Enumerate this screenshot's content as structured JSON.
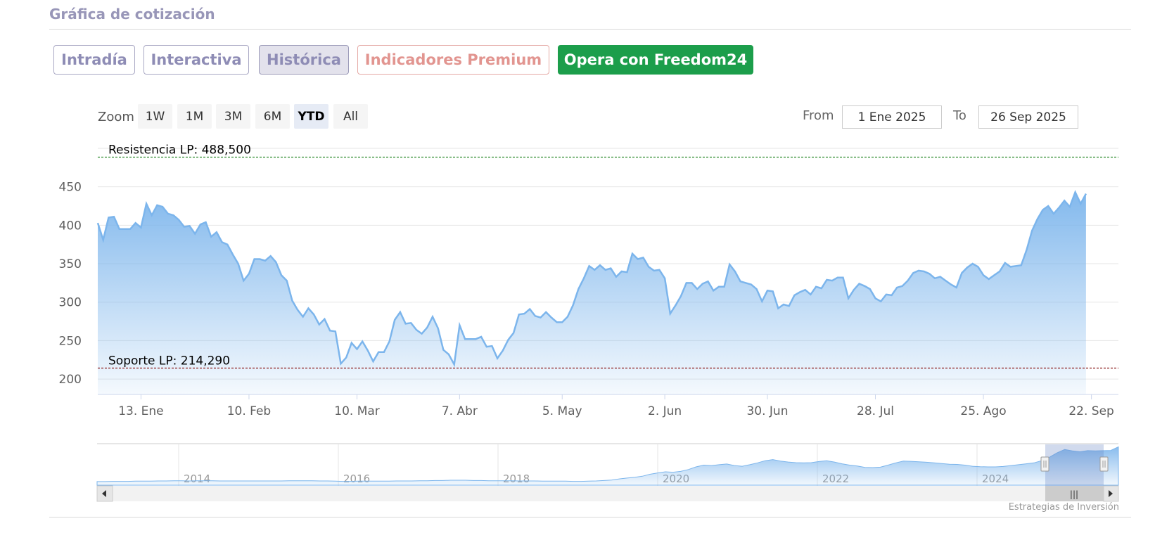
{
  "header": {
    "title": "Gráfica de cotización"
  },
  "tabs": [
    {
      "label": "Intradía",
      "state": "default"
    },
    {
      "label": "Interactiva",
      "state": "default"
    },
    {
      "label": "Histórica",
      "state": "active"
    },
    {
      "label": "Indicadores Premium",
      "state": "premium"
    },
    {
      "label": "Opera con Freedom24",
      "state": "cta"
    }
  ],
  "zoom": {
    "label": "Zoom",
    "buttons": [
      "1W",
      "1M",
      "3M",
      "6M",
      "YTD",
      "All"
    ],
    "selected": "YTD"
  },
  "range": {
    "from_label": "From",
    "from_value": "1 Ene 2025",
    "to_label": "To",
    "to_value": "26 Sep 2025"
  },
  "colors": {
    "line": "#7cb5ec",
    "resistance": "#2e8b2e",
    "support": "#8b1a1a",
    "cta": "#1c9e4b",
    "title": "#9896b8"
  },
  "chart_data": {
    "type": "area",
    "xlim_index": [
      0,
      189
    ],
    "ylim": [
      180,
      510
    ],
    "yticks": [
      200,
      250,
      300,
      350,
      400,
      450
    ],
    "xticks": [
      {
        "label": "13. Ene",
        "index": 8
      },
      {
        "label": "10. Feb",
        "index": 28
      },
      {
        "label": "10. Mar",
        "index": 48
      },
      {
        "label": "7. Abr",
        "index": 67
      },
      {
        "label": "5. May",
        "index": 86
      },
      {
        "label": "2. Jun",
        "index": 105
      },
      {
        "label": "30. Jun",
        "index": 124
      },
      {
        "label": "28. Jul",
        "index": 144
      },
      {
        "label": "25. Ago",
        "index": 164
      },
      {
        "label": "22. Sep",
        "index": 184
      }
    ],
    "plot_bands": [
      {
        "label": "Resistencia LP: 488,500",
        "value": 488.5,
        "color": "#2e8b2e"
      },
      {
        "label": "Soporte LP: 214,290",
        "value": 214.29,
        "color": "#8b1a1a"
      }
    ],
    "series": [
      {
        "values": [
          403,
          381,
          410,
          411,
          395,
          395,
          395,
          403,
          397,
          428,
          413,
          426,
          424,
          415,
          413,
          407,
          398,
          399,
          389,
          401,
          404,
          385,
          391,
          378,
          375,
          362,
          350,
          328,
          337,
          356,
          356,
          354,
          360,
          352,
          335,
          328,
          302,
          290,
          281,
          292,
          284,
          271,
          278,
          263,
          262,
          220,
          228,
          247,
          239,
          249,
          237,
          223,
          235,
          235,
          249,
          277,
          287,
          272,
          273,
          264,
          259,
          267,
          281,
          266,
          238,
          232,
          219,
          270,
          252,
          252,
          252,
          255,
          242,
          243,
          227,
          237,
          251,
          260,
          284,
          285,
          291,
          282,
          280,
          287,
          280,
          274,
          274,
          281,
          296,
          317,
          331,
          347,
          342,
          348,
          342,
          344,
          333,
          340,
          339,
          363,
          356,
          358,
          346,
          341,
          342,
          331,
          285,
          296,
          308,
          325,
          325,
          317,
          324,
          327,
          315,
          320,
          320,
          349,
          340,
          327,
          325,
          323,
          317,
          301,
          315,
          314,
          292,
          297,
          295,
          309,
          313,
          316,
          310,
          320,
          318,
          329,
          328,
          332,
          332,
          305,
          316,
          324,
          321,
          317,
          305,
          301,
          310,
          309,
          319,
          321,
          328,
          338,
          341,
          340,
          337,
          331,
          333,
          328,
          323,
          319,
          338,
          345,
          350,
          346,
          335,
          330,
          335,
          340,
          351,
          346,
          347,
          348,
          368,
          393,
          408,
          420,
          425,
          415,
          423,
          432,
          424,
          443,
          428,
          441
        ]
      }
    ],
    "navigator": {
      "year_labels": [
        "2014",
        "2016",
        "2018",
        "2020",
        "2022",
        "2024"
      ],
      "values": [
        16,
        16,
        17,
        17,
        17,
        18,
        18,
        18,
        19,
        19,
        20,
        20,
        19,
        20,
        20,
        20,
        19,
        19,
        19,
        19,
        19,
        19,
        19,
        19,
        19,
        20,
        20,
        20,
        20,
        19,
        19,
        18,
        17,
        17,
        18,
        18,
        18,
        18,
        18,
        19,
        19,
        19,
        20,
        20,
        21,
        21,
        22,
        22,
        22,
        21,
        21,
        20,
        20,
        20,
        20,
        19,
        19,
        19,
        18,
        18,
        18,
        18,
        17,
        17,
        18,
        19,
        21,
        23,
        28,
        32,
        35,
        40,
        49,
        55,
        60,
        58,
        62,
        70,
        82,
        90,
        88,
        92,
        95,
        88,
        85,
        92,
        100,
        110,
        115,
        108,
        104,
        101,
        100,
        101,
        106,
        110,
        104,
        96,
        90,
        86,
        80,
        79,
        81,
        90,
        100,
        108,
        107,
        105,
        103,
        100,
        97,
        94,
        93,
        90,
        85,
        83,
        82,
        82,
        84,
        88,
        92,
        96,
        100,
        110,
        125,
        145,
        160,
        154,
        150,
        155,
        154,
        155,
        156,
        172
      ]
    }
  },
  "navigator": {
    "scroll_label": "|||"
  },
  "credit": "Estrategias de Inversión"
}
